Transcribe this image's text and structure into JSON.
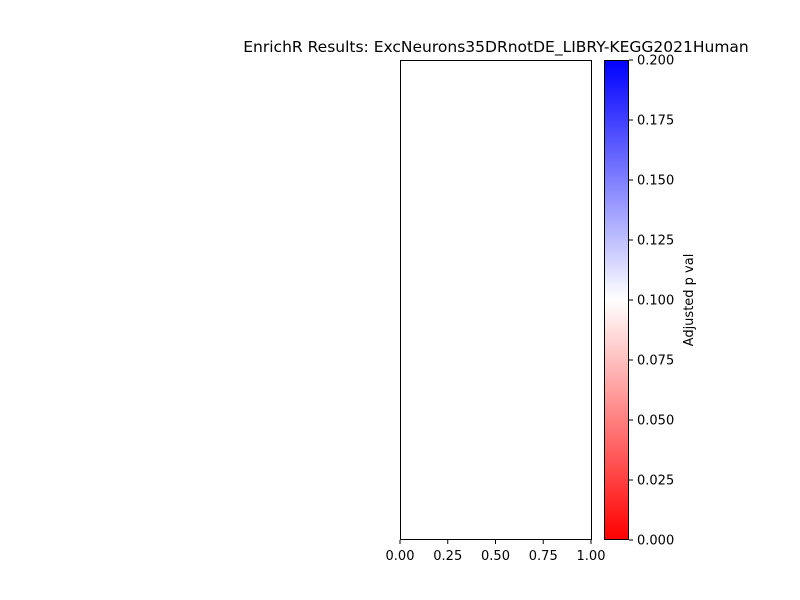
{
  "chart_data": {
    "type": "scatter",
    "title": "EnrichR Results: ExcNeurons35DRnotDE_LIBRY-KEGG2021Human",
    "xlabel": "",
    "ylabel": "",
    "xlim": [
      0,
      1
    ],
    "x_ticks": [
      "0.00",
      "0.25",
      "0.50",
      "0.75",
      "1.00"
    ],
    "x_tick_values": [
      0,
      0.25,
      0.5,
      0.75,
      1.0
    ],
    "y_ticks": [],
    "points": [],
    "grid": false,
    "colorbar": {
      "label": "Adjusted p val",
      "range": [
        0,
        0.2
      ],
      "ticks": [
        "0.000",
        "0.025",
        "0.050",
        "0.075",
        "0.100",
        "0.125",
        "0.150",
        "0.175",
        "0.200"
      ],
      "tick_values": [
        0,
        0.025,
        0.05,
        0.075,
        0.1,
        0.125,
        0.15,
        0.175,
        0.2
      ],
      "colormap": "bwr_r",
      "colors": {
        "low": "#ff0000",
        "mid": "#ffffff",
        "high": "#0000ff"
      }
    }
  }
}
